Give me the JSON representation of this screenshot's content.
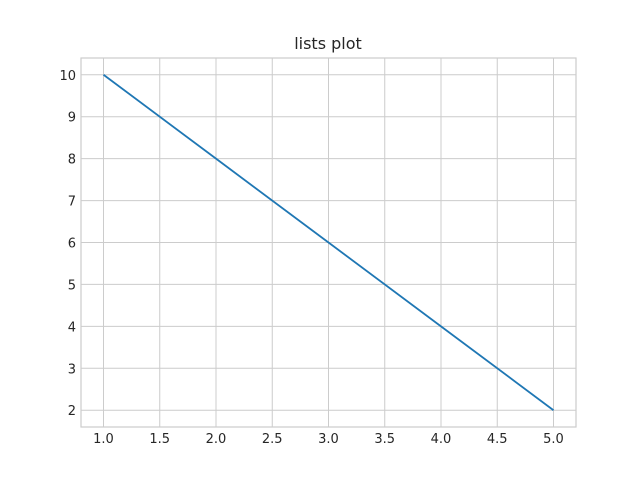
{
  "chart_data": {
    "type": "line",
    "title": "lists plot",
    "xlabel": "",
    "ylabel": "",
    "grid": true,
    "xlim": [
      0.8,
      5.2
    ],
    "ylim": [
      1.6,
      10.4
    ],
    "x_ticks": [
      1.0,
      1.5,
      2.0,
      2.5,
      3.0,
      3.5,
      4.0,
      4.5,
      5.0
    ],
    "x_tick_labels": [
      "1.0",
      "1.5",
      "2.0",
      "2.5",
      "3.0",
      "3.5",
      "4.0",
      "4.5",
      "5.0"
    ],
    "y_ticks": [
      2,
      3,
      4,
      5,
      6,
      7,
      8,
      9,
      10
    ],
    "y_tick_labels": [
      "2",
      "3",
      "4",
      "5",
      "6",
      "7",
      "8",
      "9",
      "10"
    ],
    "series": [
      {
        "x": [
          1,
          2,
          3,
          4,
          5
        ],
        "y": [
          10,
          8,
          6,
          4,
          2
        ],
        "color": "#1f77b4"
      }
    ],
    "colors": {
      "grid": "#cccccc",
      "spine": "#cccccc",
      "text": "#262626"
    }
  }
}
